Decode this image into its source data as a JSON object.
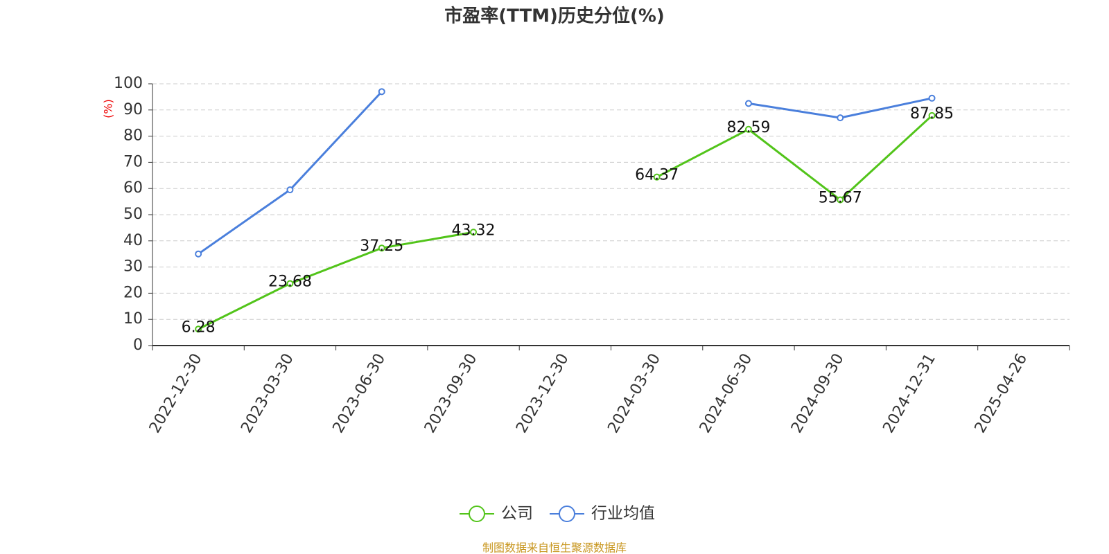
{
  "chart_data": {
    "type": "line",
    "title": "市盈率(TTM)历史分位(%)",
    "y_label": "(%)",
    "categories": [
      "2022-12-30",
      "2023-03-30",
      "2023-06-30",
      "2023-09-30",
      "2023-12-30",
      "2024-03-30",
      "2024-06-30",
      "2024-09-30",
      "2024-12-31",
      "2025-04-26"
    ],
    "series": [
      {
        "name": "公司",
        "color": "#52c41a",
        "values": [
          6.28,
          23.68,
          37.25,
          43.32,
          null,
          64.37,
          82.59,
          55.67,
          87.85,
          null
        ]
      },
      {
        "name": "行业均值",
        "color": "#4a7fdc",
        "values": [
          35,
          59.5,
          97,
          null,
          null,
          null,
          92.5,
          87,
          94.5,
          null
        ]
      }
    ],
    "ylim": [
      0,
      100
    ],
    "yticks": [
      0,
      10,
      20,
      30,
      40,
      50,
      60,
      70,
      80,
      90,
      100
    ],
    "grid": true,
    "legend": "bottom",
    "source": "制图数据来自恒生聚源数据库"
  }
}
